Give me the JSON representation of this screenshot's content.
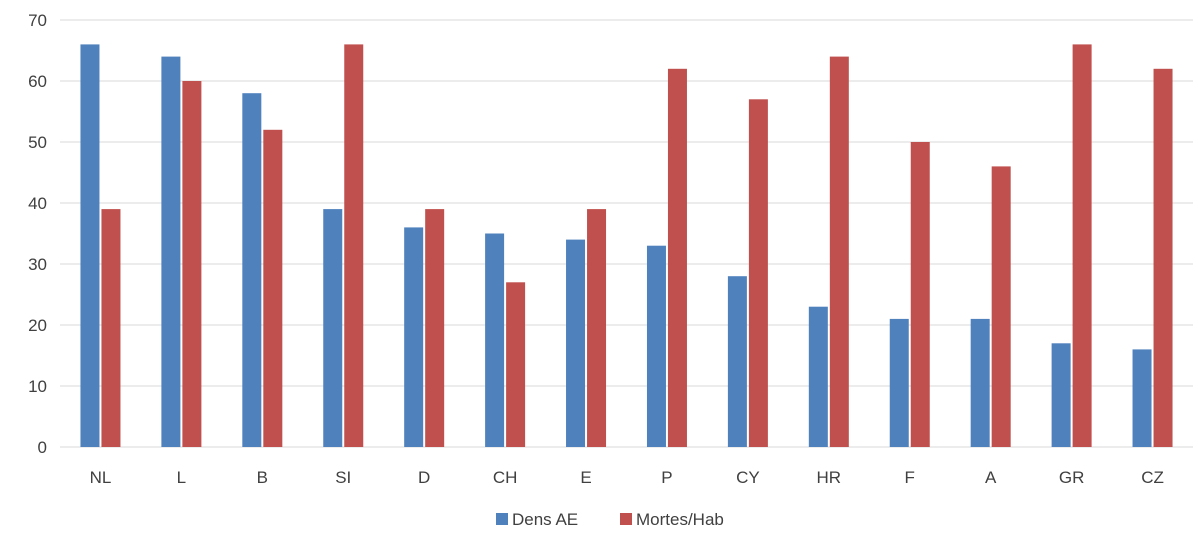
{
  "chart_data": {
    "type": "bar",
    "categories": [
      "NL",
      "L",
      "B",
      "SI",
      "D",
      "CH",
      "E",
      "P",
      "CY",
      "HR",
      "F",
      "A",
      "GR",
      "CZ"
    ],
    "series": [
      {
        "name": "Dens AE",
        "color": "#4F81BD",
        "values": [
          66,
          64,
          58,
          39,
          36,
          35,
          34,
          33,
          28,
          23,
          21,
          21,
          17,
          16
        ]
      },
      {
        "name": "Mortes/Hab",
        "color": "#C0504D",
        "values": [
          39,
          60,
          52,
          66,
          39,
          27,
          39,
          62,
          57,
          64,
          50,
          46,
          66,
          62
        ]
      }
    ],
    "ylim": [
      0,
      70
    ],
    "yticks": [
      "0",
      "10",
      "20",
      "30",
      "40",
      "50",
      "60",
      "70"
    ],
    "grid": true,
    "legend_position": "bottom",
    "title": "",
    "xlabel": "",
    "ylabel": ""
  }
}
